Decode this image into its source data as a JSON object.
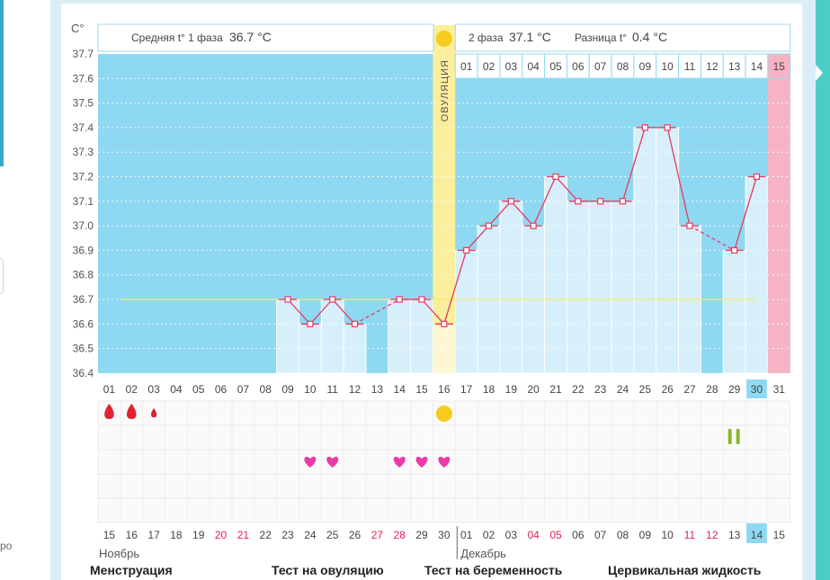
{
  "chart_data": {
    "type": "line",
    "y_axis_label": "C°",
    "ylim": [
      36.4,
      37.7
    ],
    "y_ticks": [
      "37.7",
      "37.6",
      "37.5",
      "37.4",
      "37.3",
      "37.2",
      "37.1",
      "37.0",
      "36.9",
      "36.8",
      "36.7",
      "36.6",
      "36.5",
      "36.4"
    ],
    "cycle_days": [
      "01",
      "02",
      "03",
      "04",
      "05",
      "06",
      "07",
      "08",
      "09",
      "10",
      "11",
      "12",
      "13",
      "14",
      "15",
      "16",
      "17",
      "18",
      "19",
      "20",
      "21",
      "22",
      "23",
      "24",
      "25",
      "26",
      "27",
      "28",
      "29",
      "30",
      "31"
    ],
    "temperatures": [
      null,
      null,
      null,
      null,
      null,
      null,
      null,
      null,
      36.7,
      36.6,
      36.7,
      36.6,
      null,
      36.7,
      36.7,
      36.6,
      36.9,
      37.0,
      37.1,
      37.0,
      37.2,
      37.1,
      37.1,
      37.1,
      37.4,
      37.4,
      37.0,
      null,
      36.9,
      37.2,
      null
    ],
    "dashed_gaps": [
      [
        12,
        14
      ],
      [
        27,
        29
      ]
    ],
    "phase1": {
      "label": "Средняя t° 1 фаза",
      "value": "36.7 °C",
      "avg": 36.7
    },
    "phase2": {
      "label": "2 фаза",
      "value": "37.1 °C",
      "diff_label": "Разница t°",
      "diff_value": "0.4 °C"
    },
    "ovulation_label": "ОВУЛЯЦИЯ",
    "ovulation_day": 16,
    "phase2_days": [
      "01",
      "02",
      "03",
      "04",
      "05",
      "06",
      "07",
      "08",
      "09",
      "10",
      "11",
      "12",
      "13",
      "14",
      "15"
    ],
    "current_day": 30,
    "menstruation_drops": [
      1,
      2,
      3
    ],
    "ovulation_test_hearts": [
      10,
      11,
      14,
      15,
      16
    ],
    "pregnancy_test_day": 29,
    "ovulation_marker_day": 16,
    "calendar_dates": [
      "15",
      "16",
      "17",
      "18",
      "19",
      "20",
      "21",
      "22",
      "23",
      "24",
      "25",
      "26",
      "27",
      "28",
      "29",
      "30",
      "01",
      "02",
      "03",
      "04",
      "05",
      "06",
      "07",
      "08",
      "09",
      "10",
      "11",
      "12",
      "13",
      "14",
      "15"
    ],
    "calendar_weekend_idx": [
      5,
      6,
      12,
      13,
      19,
      20,
      26,
      27
    ],
    "calendar_today_idx": 29,
    "month_nov": "Ноябрь",
    "month_dec": "Декабрь",
    "colors": {
      "sky": "#8fd8f2",
      "column": "#d6effb",
      "ovulation": "#fbee9c",
      "line": "#e8395f",
      "avg_line": "#f5ec6a",
      "pink": "#f6b3c4",
      "weekend": "#e3204e",
      "today": "#8fd8f2"
    }
  },
  "legend": {
    "menstruation": "Менструация",
    "ovulation_test": "Тест на овуляцию",
    "pregnancy_test": "Тест на беременность",
    "cervical_fluid": "Цервикальная жидкость"
  },
  "sidebar_snippet": "ро"
}
